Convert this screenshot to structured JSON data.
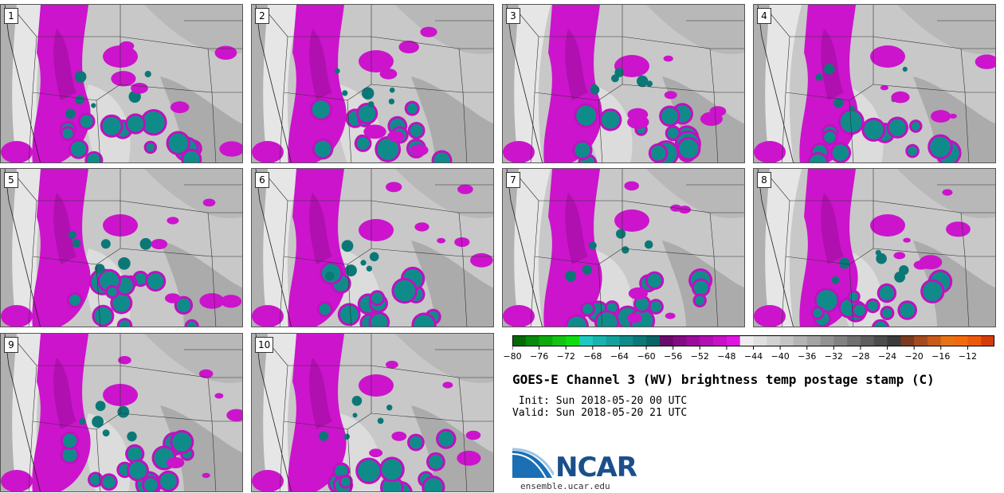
{
  "panels": [
    {
      "label": "1"
    },
    {
      "label": "2"
    },
    {
      "label": "3"
    },
    {
      "label": "4"
    },
    {
      "label": "5"
    },
    {
      "label": "6"
    },
    {
      "label": "7"
    },
    {
      "label": "8"
    },
    {
      "label": "9"
    },
    {
      "label": "10"
    }
  ],
  "colorbar": {
    "colors": [
      "#056a05",
      "#0a8a0a",
      "#0fa80f",
      "#14c414",
      "#10dd10",
      "#20c9c0",
      "#19b3ad",
      "#14a09b",
      "#0f8c89",
      "#0b7877",
      "#076565",
      "#6a0a6a",
      "#830b83",
      "#9c0c9c",
      "#b20fb2",
      "#c812c8",
      "#df16df",
      "#ededed",
      "#e0e0e0",
      "#d2d2d2",
      "#c4c4c4",
      "#b4b4b4",
      "#a4a4a4",
      "#939393",
      "#828282",
      "#707070",
      "#5e5e5e",
      "#4c4c4c",
      "#3b3b3b",
      "#7a3a1e",
      "#a44a1f",
      "#c85a1a",
      "#e67315",
      "#f26a10",
      "#ec5a10",
      "#d63c0a"
    ],
    "tick_labels": [
      "−80",
      "−76",
      "−72",
      "−68",
      "−64",
      "−60",
      "−56",
      "−52",
      "−48",
      "−44",
      "−40",
      "−36",
      "−32",
      "−28",
      "−24",
      "−20",
      "−16",
      "−12"
    ]
  },
  "title": "GOES-E Channel 3 (WV) brightness temp postage stamp (C)",
  "init_line": " Init: Sun 2018-05-20 00 UTC",
  "valid_line": "Valid: Sun 2018-05-20 21 UTC",
  "logo_text": "NCAR",
  "url": "ensemble.ucar.edu"
}
